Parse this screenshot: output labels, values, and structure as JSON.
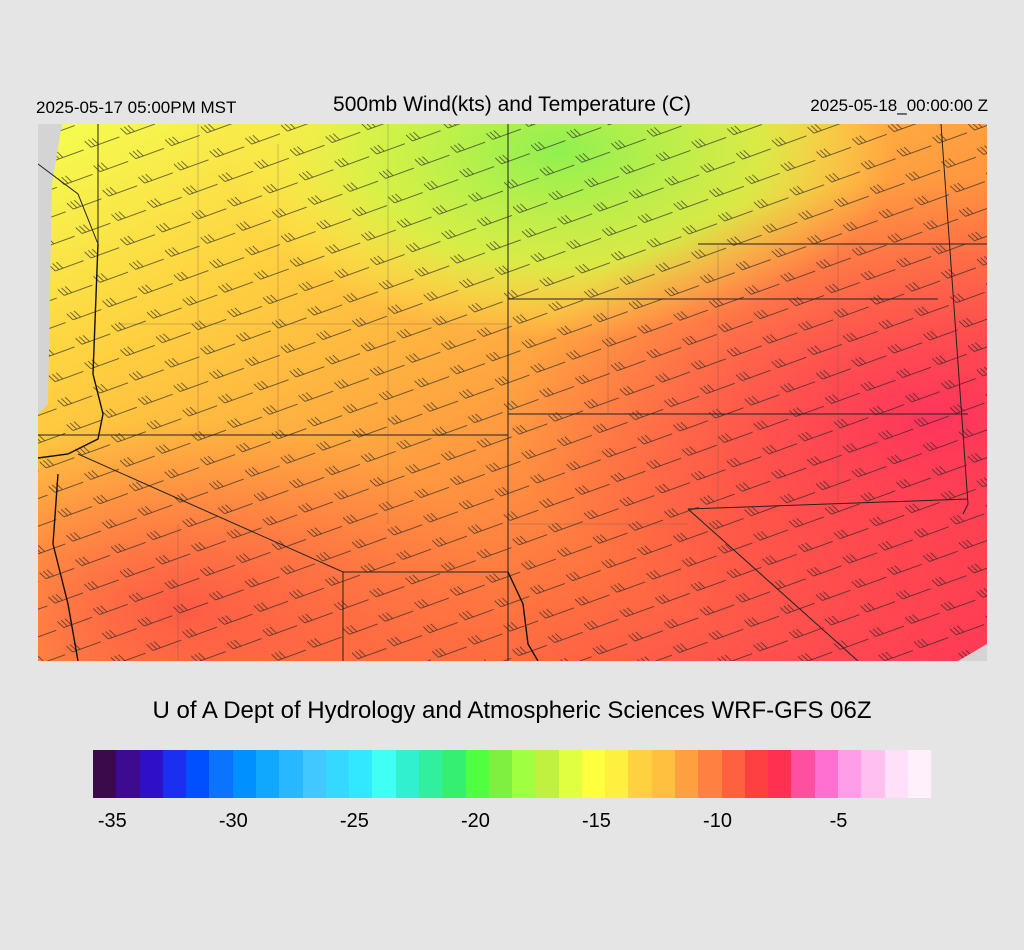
{
  "header": {
    "local_time": "2025-05-17 05:00PM MST",
    "title": "500mb Wind(kts) and Temperature (C)",
    "valid_time": "2025-05-18_00:00:00 Z"
  },
  "footer": {
    "credit": "U of A Dept of Hydrology and Atmospheric Sciences WRF-GFS 06Z"
  },
  "map": {
    "field": "500mb temperature",
    "units": "C",
    "overlay": "wind barbs (kts)",
    "region": "western United States",
    "background_color": "#d4d4d4"
  },
  "colorbar": {
    "colors": [
      "#3a0a4a",
      "#3d0a90",
      "#2f10c8",
      "#1a2ff0",
      "#0050ff",
      "#0a73ff",
      "#0090ff",
      "#10a8ff",
      "#28b8ff",
      "#40c8ff",
      "#35d8ff",
      "#30e8ff",
      "#40fff5",
      "#30f0d0",
      "#30f0a0",
      "#35f070",
      "#50ff40",
      "#80f040",
      "#a0ff40",
      "#c0f040",
      "#e0ff40",
      "#ffff40",
      "#fff040",
      "#ffd040",
      "#ffc040",
      "#ffa040",
      "#ff8040",
      "#ff6040",
      "#ff4040",
      "#ff3050",
      "#ff4fa0",
      "#ff70d0",
      "#ff9ee8",
      "#ffc0f0",
      "#ffe0f8",
      "#fff0fc"
    ],
    "tick_labels": [
      "-35",
      "-30",
      "-25",
      "-20",
      "-15",
      "-10",
      "-5"
    ]
  }
}
